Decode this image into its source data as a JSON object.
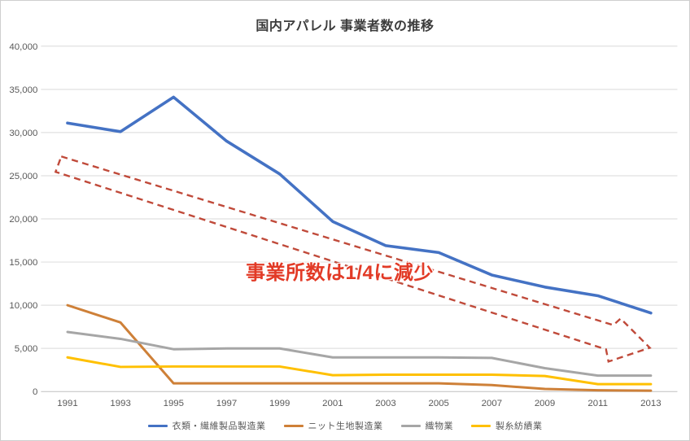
{
  "frame": {
    "background": "#ffffff",
    "border_color": "#cfcfcf"
  },
  "chart_data": {
    "type": "line",
    "title": "国内アパレル 事業者数の推移",
    "xlabel": "",
    "ylabel": "",
    "categories": [
      "1991",
      "1993",
      "1995",
      "1997",
      "1999",
      "2001",
      "2003",
      "2005",
      "2007",
      "2009",
      "2011",
      "2013"
    ],
    "series": [
      {
        "name": "衣類・繊維製品製造業",
        "color": "#4472c4",
        "width": 3.6,
        "values": [
          31100,
          30100,
          34100,
          29000,
          25200,
          19700,
          16900,
          16100,
          13500,
          12100,
          11100,
          9100
        ]
      },
      {
        "name": "ニット生地製造業",
        "color": "#ce8038",
        "width": 3,
        "values": [
          10000,
          8000,
          950,
          950,
          950,
          950,
          950,
          950,
          750,
          300,
          150,
          100
        ]
      },
      {
        "name": "織物業",
        "color": "#a6a6a6",
        "width": 3,
        "values": [
          6900,
          6100,
          4900,
          5000,
          5000,
          3950,
          3950,
          3950,
          3900,
          2700,
          1850,
          1850
        ]
      },
      {
        "name": "製糸紡績業",
        "color": "#ffc000",
        "width": 3,
        "values": [
          3950,
          2850,
          2900,
          2900,
          2900,
          1900,
          1950,
          1950,
          1950,
          1800,
          850,
          850
        ]
      }
    ],
    "ylim": [
      0,
      40000
    ],
    "y_tick_step": 5000,
    "y_tick_labels": [
      "0",
      "5,000",
      "10,000",
      "15,000",
      "20,000",
      "25,000",
      "30,000",
      "35,000",
      "40,000"
    ],
    "grid": true,
    "gridline_color": "#d9d9d9",
    "axis_line_color": "#bfbfbf",
    "tick_label_color": "#595959",
    "legend_position": "bottom",
    "annotation": {
      "text": "事業所数は1/4に減少",
      "color": "#e23a26"
    },
    "trend_arrow": {
      "shape": "dashed-outline-block-arrow",
      "direction": "down-right",
      "color": "#c04a3a"
    }
  }
}
